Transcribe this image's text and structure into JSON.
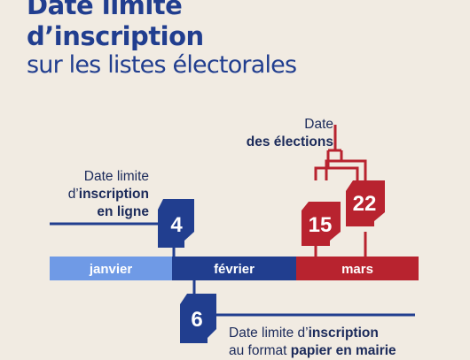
{
  "title": {
    "line1": "Date limite",
    "line2": "d’inscription",
    "line3": "sur les listes électorales"
  },
  "timeline": {
    "months": [
      "janvier",
      "février",
      "mars"
    ]
  },
  "online": {
    "label_line1": "Date limite",
    "label_line2_pre": "d’",
    "label_line2_bold": "inscription",
    "label_line3": "en ligne",
    "day": "4"
  },
  "elections": {
    "label_line1": "Date",
    "label_line2": "des élections",
    "days": [
      "15",
      "22"
    ]
  },
  "paper": {
    "label_line1_pre": "Date limite d’",
    "label_line1_bold": "inscription",
    "label_line2_pre": "au format ",
    "label_line2_bold": "papier en mairie",
    "day": "6"
  },
  "colors": {
    "background": "#f1ebe2",
    "navy": "#213e8f",
    "light_blue": "#6f9ae6",
    "red": "#b8232f",
    "text_dark": "#1b2a5a"
  }
}
